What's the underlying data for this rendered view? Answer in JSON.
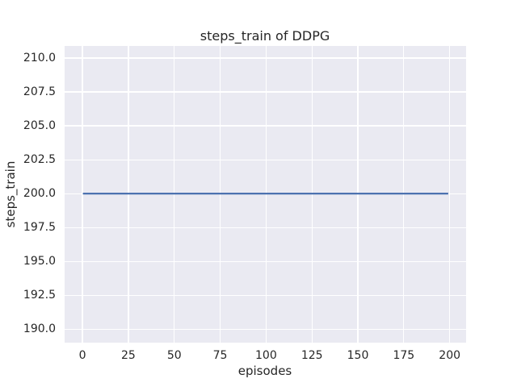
{
  "chart_data": {
    "type": "line",
    "title": "steps_train of DDPG",
    "xlabel": "episodes",
    "ylabel": "steps_train",
    "xlim": [
      -9.95,
      208.95
    ],
    "ylim": [
      189.0,
      210.9
    ],
    "xticks": [
      0,
      25,
      50,
      75,
      100,
      125,
      150,
      175,
      200
    ],
    "xtick_labels": [
      "0",
      "25",
      "50",
      "75",
      "100",
      "125",
      "150",
      "175",
      "200"
    ],
    "yticks": [
      190.0,
      192.5,
      195.0,
      197.5,
      200.0,
      202.5,
      205.0,
      207.5,
      210.0
    ],
    "ytick_labels": [
      "190.0",
      "192.5",
      "195.0",
      "197.5",
      "200.0",
      "202.5",
      "205.0",
      "207.5",
      "210.0"
    ],
    "grid": true,
    "legend": "none",
    "series": [
      {
        "name": "steps_train",
        "color": "#4c72b0",
        "linewidth": 2.2,
        "x": [
          0,
          199
        ],
        "y": [
          200,
          200
        ]
      }
    ],
    "colors": {
      "plot_background": "#eaeaf2",
      "figure_background": "#ffffff",
      "grid": "#ffffff",
      "text": "#262626",
      "line": "#4c72b0"
    }
  }
}
